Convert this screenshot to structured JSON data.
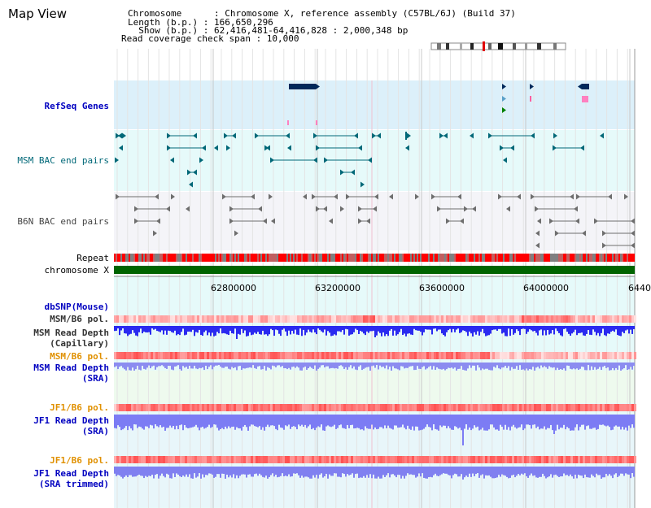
{
  "title": "Map View",
  "header": {
    "chromosome_line": "Chromosome      : Chromosome X, reference assembly (C57BL/6J) (Build 37)",
    "length_line": "Length (b.p.) : 166,650,296",
    "show_line": "  Show (b.p.) : 62,416,481-64,416,828 : 2,000,348 bp",
    "coverage_line": "Read coverage check span : 10,000"
  },
  "tracks": {
    "refseq": "RefSeq Genes",
    "msm_bac": "MSM BAC end pairs",
    "b6n_bac": "B6N BAC end pairs",
    "repeat": "Repeat",
    "chromosome": "chromosome X",
    "dbsnp": "dbSNP(Mouse)",
    "msm_b6_pol_1": "MSM/B6 pol.",
    "msm_depth_cap_1": "MSM Read Depth",
    "msm_depth_cap_2": "(Capillary)",
    "msm_b6_pol_2": "MSM/B6 pol.",
    "msm_depth_sra_1": "MSM Read Depth",
    "msm_depth_sra_2": "(SRA)",
    "jf1_b6_pol_1": "JF1/B6 pol.",
    "jf1_depth_sra_1": "JF1 Read Depth",
    "jf1_depth_sra_2": "(SRA)",
    "jf1_b6_pol_2": "JF1/B6 pol.",
    "jf1_depth_trim_1": "JF1 Read Depth",
    "jf1_depth_trim_2": "(SRA trimmed)"
  },
  "axis": {
    "ticks": [
      "62800000",
      "63200000",
      "63600000",
      "64000000",
      "6440"
    ]
  },
  "colors": {
    "refseq_bg": "#dcf0fa",
    "bac_bg": "#e6fafa",
    "chromosome": "#006400",
    "depth": "#3030e8",
    "pol_red": "#ff6060"
  }
}
